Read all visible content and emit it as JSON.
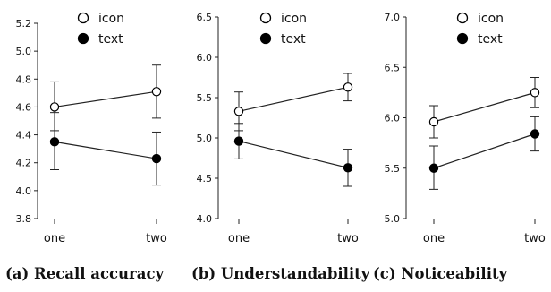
{
  "chart_data": [
    {
      "type": "line",
      "title": "(a) Recall accuracy",
      "categories": [
        "one",
        "two"
      ],
      "ylim": [
        3.8,
        5.2
      ],
      "yticks": [
        "3.8",
        "4.0",
        "4.2",
        "4.4",
        "4.6",
        "4.8",
        "5.0",
        "5.2"
      ],
      "grid": false,
      "legend": "top",
      "series": [
        {
          "name": "icon",
          "marker": "open-circle",
          "values": [
            4.6,
            4.71
          ],
          "err_low": [
            4.43,
            4.52
          ],
          "err_high": [
            4.78,
            4.9
          ]
        },
        {
          "name": "text",
          "marker": "filled-circle",
          "values": [
            4.35,
            4.23
          ],
          "err_low": [
            4.15,
            4.04
          ],
          "err_high": [
            4.56,
            4.42
          ]
        }
      ]
    },
    {
      "type": "line",
      "title": "(b) Understandability",
      "categories": [
        "one",
        "two"
      ],
      "ylim": [
        4.0,
        6.5
      ],
      "yticks": [
        "4.0",
        "4.5",
        "5.0",
        "5.5",
        "6.0",
        "6.5"
      ],
      "grid": false,
      "legend": "top",
      "series": [
        {
          "name": "icon",
          "marker": "open-circle",
          "values": [
            5.33,
            5.63
          ],
          "err_low": [
            5.09,
            5.46
          ],
          "err_high": [
            5.57,
            5.8
          ]
        },
        {
          "name": "text",
          "marker": "filled-circle",
          "values": [
            4.96,
            4.63
          ],
          "err_low": [
            4.74,
            4.4
          ],
          "err_high": [
            5.18,
            4.86
          ]
        }
      ]
    },
    {
      "type": "line",
      "title": "(c) Noticeability",
      "categories": [
        "one",
        "two"
      ],
      "ylim": [
        5.0,
        7.0
      ],
      "yticks": [
        "5.0",
        "5.5",
        "6.0",
        "6.5",
        "7.0"
      ],
      "grid": false,
      "legend": "top",
      "series": [
        {
          "name": "icon",
          "marker": "open-circle",
          "values": [
            5.96,
            6.25
          ],
          "err_low": [
            5.8,
            6.1
          ],
          "err_high": [
            6.12,
            6.4
          ]
        },
        {
          "name": "text",
          "marker": "filled-circle",
          "values": [
            5.5,
            5.84
          ],
          "err_low": [
            5.29,
            5.67
          ],
          "err_high": [
            5.72,
            6.01
          ]
        }
      ]
    }
  ]
}
